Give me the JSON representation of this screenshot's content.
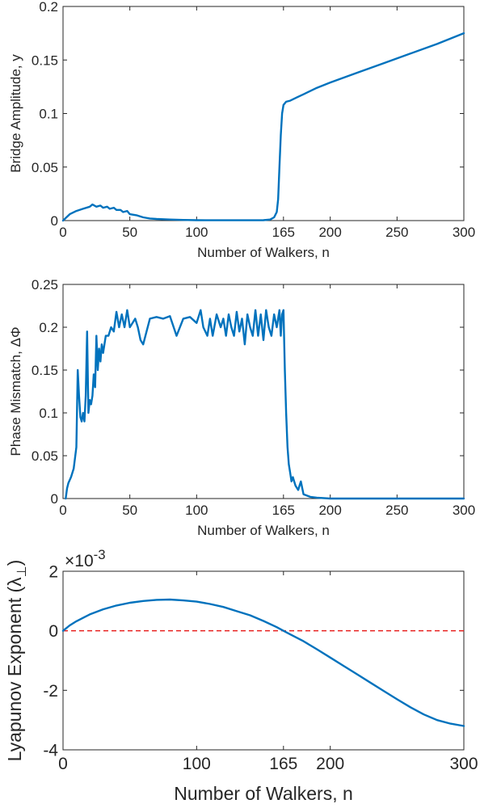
{
  "chart_data": [
    {
      "type": "line",
      "xlabel": "Number of Walkers, n",
      "ylabel": "Bridge Amplitude, y",
      "xlim": [
        0,
        300
      ],
      "ylim": [
        0,
        0.2
      ],
      "xticks": [
        0,
        50,
        100,
        165,
        200,
        250,
        300
      ],
      "xtick_labels": [
        "0",
        "50",
        "100",
        "165",
        "200",
        "250",
        "300"
      ],
      "yticks": [
        0,
        0.05,
        0.1,
        0.15,
        0.2
      ],
      "ytick_labels": [
        "0",
        "0.05",
        "0.1",
        "0.15",
        "0.2"
      ],
      "grid": false,
      "color": "#0072BD",
      "x": [
        0,
        5,
        10,
        15,
        20,
        22,
        25,
        28,
        30,
        33,
        35,
        38,
        40,
        43,
        45,
        48,
        50,
        55,
        60,
        65,
        70,
        80,
        90,
        100,
        120,
        140,
        150,
        155,
        158,
        160,
        161,
        162,
        163,
        164,
        165,
        167,
        170,
        175,
        180,
        190,
        200,
        220,
        240,
        260,
        280,
        300
      ],
      "y": [
        0,
        0.006,
        0.009,
        0.011,
        0.013,
        0.015,
        0.013,
        0.014,
        0.012,
        0.013,
        0.011,
        0.012,
        0.01,
        0.01,
        0.008,
        0.009,
        0.006,
        0.005,
        0.003,
        0.002,
        0.0015,
        0.001,
        0.0006,
        0.0004,
        0.0003,
        0.0003,
        0.0004,
        0.001,
        0.003,
        0.008,
        0.02,
        0.05,
        0.08,
        0.1,
        0.108,
        0.111,
        0.112,
        0.115,
        0.118,
        0.124,
        0.129,
        0.138,
        0.147,
        0.156,
        0.165,
        0.175
      ]
    },
    {
      "type": "line",
      "xlabel": "Number of Walkers, n",
      "ylabel": "Phase Mismatch, ΔΦ",
      "xlim": [
        0,
        300
      ],
      "ylim": [
        0,
        0.25
      ],
      "xticks": [
        0,
        50,
        100,
        165,
        200,
        250,
        300
      ],
      "xtick_labels": [
        "0",
        "50",
        "100",
        "165",
        "200",
        "250",
        "300"
      ],
      "yticks": [
        0,
        0.05,
        0.1,
        0.15,
        0.2,
        0.25
      ],
      "ytick_labels": [
        "0",
        "0.05",
        "0.1",
        "0.15",
        "0.2",
        "0.25"
      ],
      "grid": false,
      "color": "#0072BD",
      "x": [
        2,
        3,
        4,
        6,
        8,
        10,
        11,
        12,
        13,
        14,
        15,
        16,
        17,
        18,
        19,
        20,
        21,
        22,
        23,
        24,
        25,
        26,
        27,
        28,
        29,
        30,
        32,
        34,
        36,
        38,
        40,
        42,
        44,
        46,
        48,
        50,
        52,
        54,
        56,
        58,
        60,
        65,
        70,
        75,
        80,
        85,
        90,
        95,
        100,
        103,
        105,
        108,
        110,
        112,
        115,
        118,
        120,
        122,
        124,
        126,
        128,
        130,
        132,
        134,
        136,
        138,
        140,
        142,
        144,
        146,
        148,
        150,
        152,
        154,
        156,
        158,
        160,
        162,
        163,
        164,
        165,
        166,
        167,
        168,
        169,
        170,
        171,
        172,
        174,
        176,
        178,
        180,
        185,
        190,
        200,
        220,
        250,
        300
      ],
      "y": [
        0,
        0.012,
        0.018,
        0.025,
        0.035,
        0.06,
        0.15,
        0.12,
        0.095,
        0.09,
        0.1,
        0.09,
        0.12,
        0.195,
        0.1,
        0.115,
        0.11,
        0.12,
        0.145,
        0.13,
        0.19,
        0.15,
        0.175,
        0.16,
        0.18,
        0.17,
        0.19,
        0.19,
        0.2,
        0.195,
        0.218,
        0.2,
        0.215,
        0.2,
        0.22,
        0.2,
        0.205,
        0.21,
        0.2,
        0.185,
        0.18,
        0.21,
        0.212,
        0.21,
        0.213,
        0.19,
        0.21,
        0.212,
        0.205,
        0.22,
        0.2,
        0.19,
        0.21,
        0.19,
        0.215,
        0.2,
        0.21,
        0.19,
        0.215,
        0.2,
        0.19,
        0.218,
        0.195,
        0.21,
        0.18,
        0.215,
        0.2,
        0.19,
        0.22,
        0.19,
        0.215,
        0.185,
        0.22,
        0.2,
        0.19,
        0.215,
        0.2,
        0.22,
        0.19,
        0.215,
        0.22,
        0.15,
        0.1,
        0.06,
        0.04,
        0.03,
        0.02,
        0.025,
        0.015,
        0.01,
        0.02,
        0.005,
        0.002,
        0.001,
        0,
        0,
        0,
        0
      ]
    },
    {
      "type": "line",
      "xlabel": "Number of Walkers, n",
      "ylabel": "Lyapunov Exponent (λ",
      "ylabel_subscript": "⊥",
      "ylabel_close": ")",
      "xlim": [
        0,
        300
      ],
      "ylim": [
        -4,
        2
      ],
      "y_exponent_base": "×10",
      "y_exponent_power": "-3",
      "xticks": [
        0,
        100,
        165,
        200,
        300
      ],
      "xtick_labels": [
        "0",
        "100",
        "165",
        "200",
        "300"
      ],
      "yticks": [
        -4,
        -2,
        0,
        2
      ],
      "ytick_labels": [
        "-4",
        "-2",
        "0",
        "2"
      ],
      "grid": false,
      "color": "#0072BD",
      "reference_line": {
        "y": 0,
        "color": "#e8211f",
        "style": "dashed"
      },
      "x": [
        0,
        5,
        10,
        20,
        30,
        40,
        50,
        60,
        70,
        80,
        90,
        100,
        110,
        120,
        130,
        140,
        150,
        160,
        165,
        170,
        180,
        190,
        200,
        210,
        220,
        230,
        240,
        250,
        260,
        270,
        280,
        290,
        300
      ],
      "y": [
        0,
        0.18,
        0.32,
        0.55,
        0.72,
        0.85,
        0.94,
        1.0,
        1.04,
        1.05,
        1.02,
        0.98,
        0.9,
        0.8,
        0.66,
        0.52,
        0.33,
        0.12,
        0.0,
        -0.12,
        -0.35,
        -0.62,
        -0.9,
        -1.18,
        -1.46,
        -1.74,
        -2.02,
        -2.3,
        -2.57,
        -2.81,
        -3.0,
        -3.12,
        -3.2
      ]
    }
  ]
}
